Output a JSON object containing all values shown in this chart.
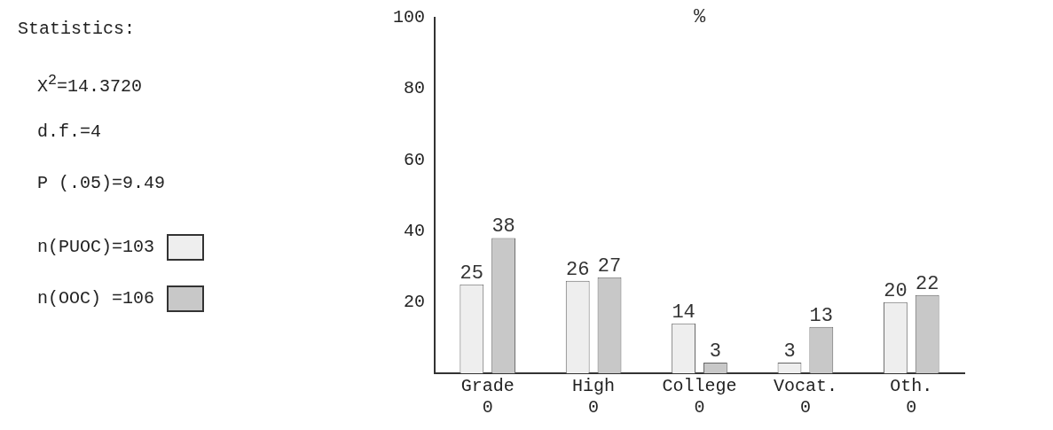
{
  "chart_data": {
    "type": "bar",
    "ylabel": "%",
    "categories": [
      "Grade\n0",
      "High\n0",
      "College\n0",
      "Vocat.\n0",
      "Oth.\n0"
    ],
    "series": [
      {
        "name": "n(PUOC)=103",
        "color": "#eeeeee",
        "values": [
          25,
          26,
          14,
          3,
          20
        ]
      },
      {
        "name": "n(OOC) =106",
        "color": "#c8c8c8",
        "values": [
          38,
          27,
          3,
          13,
          22
        ]
      }
    ],
    "ylim": [
      0,
      100
    ],
    "yticks": [
      20,
      40,
      60,
      80,
      100
    ],
    "grid": false,
    "legend": "left",
    "data_labels": true,
    "annotations": [
      "Statistics:",
      "X$^{2}$=14.3720",
      "d.f.=4",
      "P (.05)=9.49"
    ]
  }
}
